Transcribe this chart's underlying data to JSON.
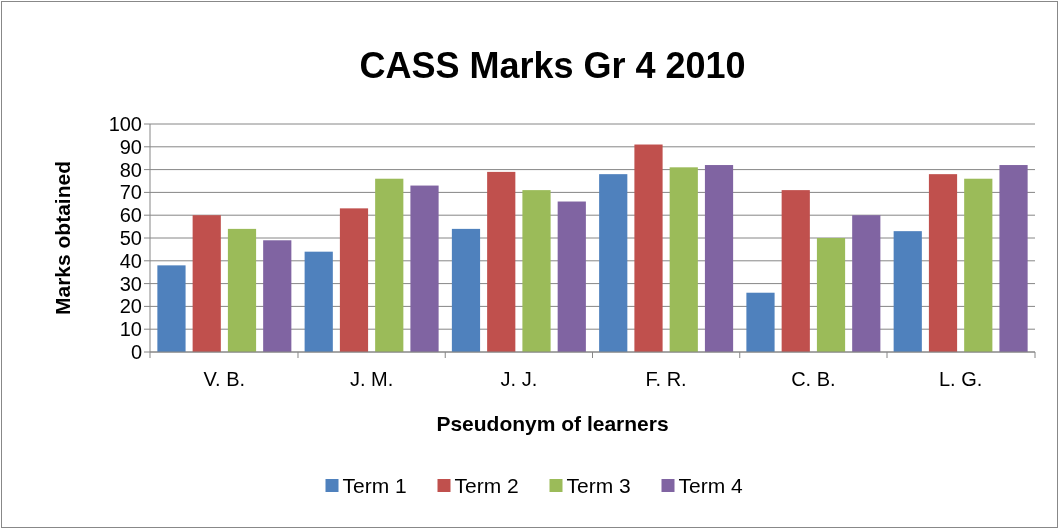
{
  "chart_data": {
    "type": "bar",
    "title": "CASS  Marks Gr 4  2010",
    "xlabel": "Pseudonym of learners",
    "ylabel": "Marks obtained",
    "categories": [
      "V. B.",
      "J. M.",
      "J. J.",
      "F. R.",
      "C. B.",
      "L. G."
    ],
    "series": [
      {
        "name": "Term 1",
        "color": "#4f81bd",
        "values": [
          38,
          44,
          54,
          78,
          26,
          53
        ]
      },
      {
        "name": "Term 2",
        "color": "#c0504d",
        "values": [
          60,
          63,
          79,
          91,
          71,
          78
        ]
      },
      {
        "name": "Term 3",
        "color": "#9bbb59",
        "values": [
          54,
          76,
          71,
          81,
          50,
          76
        ]
      },
      {
        "name": "Term 4",
        "color": "#8064a2",
        "values": [
          49,
          73,
          66,
          82,
          60,
          82
        ]
      }
    ],
    "ylim": [
      0,
      100
    ],
    "yticks": [
      0,
      10,
      20,
      30,
      40,
      50,
      60,
      70,
      80,
      90,
      100
    ],
    "grid": "y",
    "legend": "bottom"
  }
}
